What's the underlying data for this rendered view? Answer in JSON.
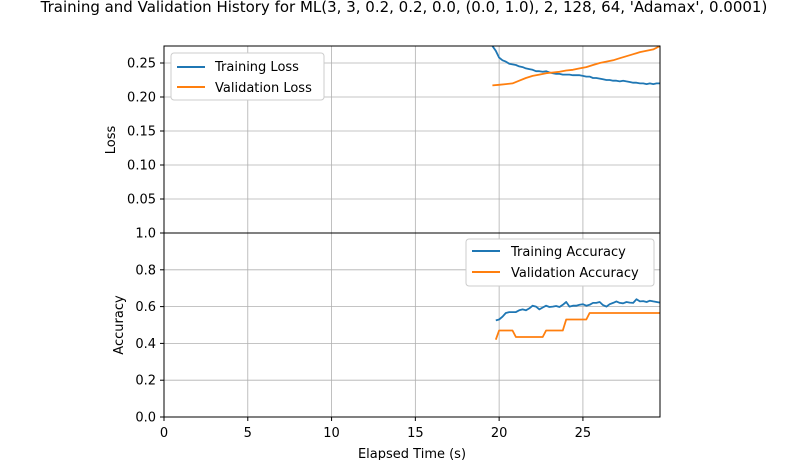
{
  "colors": {
    "training": "#1f77b4",
    "validation": "#ff7f0e",
    "grid": "#b0b0b0"
  },
  "chart_data": {
    "title": "Training and Validation History for ML(3, 3, 0.2, 0.2, 0.0, (0.0, 1.0), 2, 128, 64, 'Adamax', 0.0001)",
    "xlabel": "Elapsed Time (s)",
    "xlim": [
      0,
      29.6
    ],
    "x_ticks": [
      "0",
      "5",
      "10",
      "15",
      "20",
      "25"
    ],
    "grid": true,
    "panels": [
      {
        "type": "line",
        "ylabel": "Loss",
        "ylim": [
          0,
          0.275
        ],
        "y_ticks": [
          "0.05",
          "0.10",
          "0.15",
          "0.20",
          "0.25"
        ],
        "legend_position": "upper-left",
        "series": [
          {
            "name": "Training Loss",
            "color_key": "training",
            "x": [
              19.6,
              19.8,
              20.0,
              20.2,
              20.4,
              20.6,
              20.8,
              21.0,
              21.2,
              21.4,
              21.6,
              21.8,
              22.0,
              22.2,
              22.4,
              22.6,
              22.8,
              23.0,
              23.2,
              23.4,
              23.6,
              23.8,
              24.0,
              24.2,
              24.4,
              24.6,
              24.8,
              25.0,
              25.2,
              25.4,
              25.6,
              25.8,
              26.0,
              26.2,
              26.4,
              26.6,
              26.8,
              27.0,
              27.2,
              27.4,
              27.6,
              27.8,
              28.0,
              28.2,
              28.4,
              28.6,
              28.8,
              29.0,
              29.2,
              29.4,
              29.6
            ],
            "y": [
              0.275,
              0.268,
              0.258,
              0.254,
              0.252,
              0.249,
              0.248,
              0.247,
              0.245,
              0.244,
              0.242,
              0.241,
              0.24,
              0.238,
              0.238,
              0.237,
              0.238,
              0.236,
              0.235,
              0.234,
              0.234,
              0.233,
              0.233,
              0.233,
              0.232,
              0.232,
              0.232,
              0.231,
              0.23,
              0.23,
              0.228,
              0.228,
              0.227,
              0.226,
              0.225,
              0.225,
              0.224,
              0.224,
              0.223,
              0.224,
              0.223,
              0.222,
              0.221,
              0.221,
              0.22,
              0.22,
              0.219,
              0.22,
              0.219,
              0.22,
              0.22
            ]
          },
          {
            "name": "Validation Loss",
            "color_key": "validation",
            "x": [
              19.6,
              20.0,
              20.4,
              20.8,
              21.2,
              21.6,
              22.0,
              22.4,
              22.8,
              23.2,
              23.6,
              24.0,
              24.4,
              24.8,
              25.2,
              25.6,
              26.0,
              26.4,
              26.8,
              27.2,
              27.6,
              28.0,
              28.4,
              28.8,
              29.2,
              29.6
            ],
            "y": [
              0.217,
              0.218,
              0.219,
              0.22,
              0.224,
              0.228,
              0.231,
              0.233,
              0.235,
              0.236,
              0.237,
              0.239,
              0.24,
              0.242,
              0.244,
              0.247,
              0.25,
              0.252,
              0.254,
              0.257,
              0.26,
              0.263,
              0.266,
              0.268,
              0.27,
              0.275
            ]
          }
        ]
      },
      {
        "type": "line",
        "ylabel": "Accuracy",
        "ylim": [
          0,
          1.0
        ],
        "y_ticks": [
          "0.0",
          "0.2",
          "0.4",
          "0.6",
          "0.8",
          "1.0"
        ],
        "legend_position": "upper-right",
        "series": [
          {
            "name": "Training Accuracy",
            "color_key": "training",
            "x": [
              19.8,
              20.0,
              20.2,
              20.4,
              20.6,
              20.8,
              21.0,
              21.2,
              21.4,
              21.6,
              21.8,
              22.0,
              22.2,
              22.4,
              22.6,
              22.8,
              23.0,
              23.2,
              23.4,
              23.6,
              23.8,
              24.0,
              24.2,
              24.4,
              24.6,
              24.8,
              25.0,
              25.2,
              25.4,
              25.6,
              25.8,
              26.0,
              26.2,
              26.4,
              26.6,
              26.8,
              27.0,
              27.2,
              27.4,
              27.6,
              27.8,
              28.0,
              28.2,
              28.4,
              28.6,
              28.8,
              29.0,
              29.2,
              29.4,
              29.6
            ],
            "y": [
              0.525,
              0.53,
              0.545,
              0.565,
              0.57,
              0.57,
              0.57,
              0.58,
              0.585,
              0.58,
              0.59,
              0.605,
              0.6,
              0.585,
              0.595,
              0.605,
              0.598,
              0.6,
              0.603,
              0.598,
              0.61,
              0.625,
              0.6,
              0.605,
              0.605,
              0.61,
              0.613,
              0.605,
              0.61,
              0.62,
              0.62,
              0.625,
              0.608,
              0.6,
              0.613,
              0.62,
              0.628,
              0.62,
              0.618,
              0.625,
              0.622,
              0.62,
              0.64,
              0.628,
              0.63,
              0.625,
              0.632,
              0.628,
              0.625,
              0.622
            ]
          },
          {
            "name": "Validation Accuracy",
            "color_key": "validation",
            "x": [
              19.8,
              20.0,
              20.8,
              21.0,
              22.6,
              22.8,
              23.8,
              24.0,
              25.2,
              25.4,
              29.6
            ],
            "y": [
              0.42,
              0.47,
              0.47,
              0.435,
              0.435,
              0.47,
              0.47,
              0.53,
              0.53,
              0.565,
              0.565
            ]
          }
        ]
      }
    ]
  }
}
